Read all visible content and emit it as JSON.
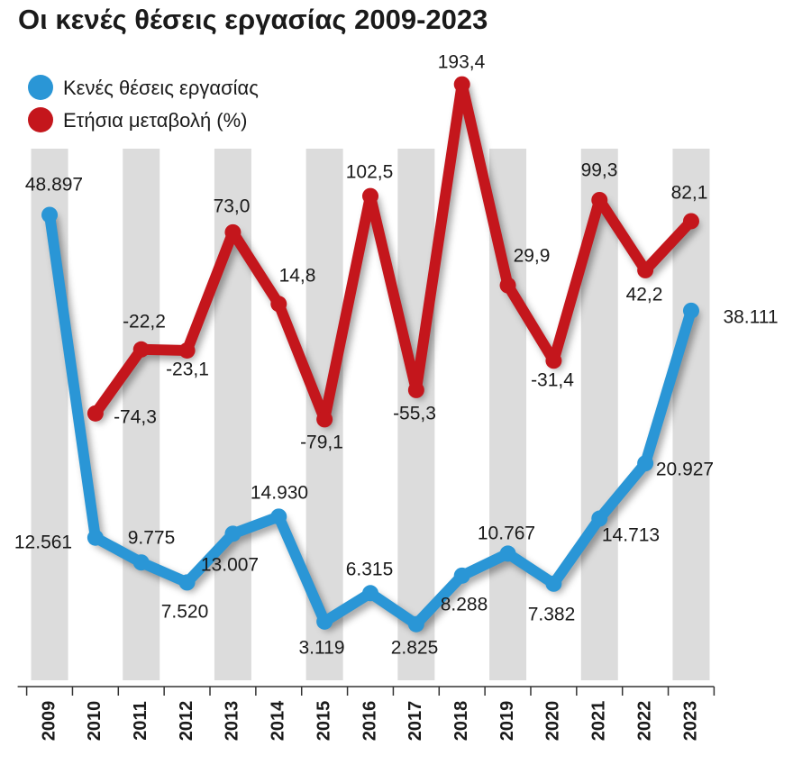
{
  "chart_data": {
    "type": "line",
    "title": "Οι κενές θέσεις εργασίας 2009-2023",
    "categories": [
      "2009",
      "2010",
      "2011",
      "2012",
      "2013",
      "2014",
      "2015",
      "2016",
      "2017",
      "2018",
      "2019",
      "2020",
      "2021",
      "2022",
      "2023"
    ],
    "series": [
      {
        "name": "Κενές θέσεις εργασίας",
        "color": "#2a96d6",
        "values": [
          48897,
          12561,
          9775,
          7520,
          13007,
          14930,
          3119,
          6315,
          2825,
          8288,
          10767,
          7382,
          14713,
          20927,
          38111
        ],
        "value_labels": [
          "48.897",
          "12.561",
          "9.775",
          "7.520",
          "13.007",
          "14.930",
          "3.119",
          "6.315",
          "2.825",
          "8.288",
          "10.767",
          "7.382",
          "14.713",
          "20.927",
          "38.111"
        ]
      },
      {
        "name": "Ετήσια μεταβολή (%)",
        "color": "#c4161c",
        "axis": "y2",
        "values": [
          null,
          -74.3,
          -22.2,
          -23.1,
          73.0,
          14.8,
          -79.1,
          102.5,
          -55.3,
          193.4,
          29.9,
          -31.4,
          99.3,
          42.2,
          82.1
        ],
        "value_labels": [
          null,
          "-74,3",
          "-22,2",
          "-23,1",
          "73,0",
          "14,8",
          "-79,1",
          "102,5",
          "-55,3",
          "193,4",
          "29,9",
          "-31,4",
          "99,3",
          "42,2",
          "82,1"
        ]
      }
    ],
    "ylim": [
      -4000,
      67000
    ],
    "y2lim": [
      -295,
      218
    ],
    "legend": "top-left"
  }
}
